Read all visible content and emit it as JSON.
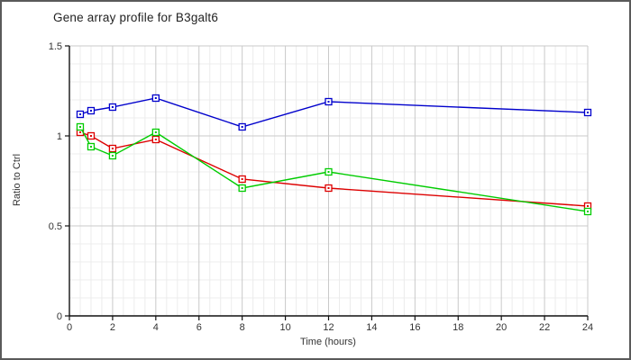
{
  "chart": {
    "title": "Gene array profile for B3galt6"
  },
  "chart_data": {
    "type": "line",
    "title": "Gene array profile for B3galt6",
    "xlabel": "Time (hours)",
    "ylabel": "Ratio to Ctrl",
    "x": [
      0.5,
      1,
      2,
      4,
      8,
      12,
      24
    ],
    "series": [
      {
        "name": "series-blue",
        "color": "#0000cc",
        "values": [
          1.12,
          1.14,
          1.16,
          1.21,
          1.05,
          1.19,
          1.13
        ]
      },
      {
        "name": "series-red",
        "color": "#dd0000",
        "values": [
          1.02,
          1.0,
          0.93,
          0.98,
          0.76,
          0.71,
          0.61
        ]
      },
      {
        "name": "series-green",
        "color": "#00cc00",
        "values": [
          1.05,
          0.94,
          0.89,
          1.02,
          0.71,
          0.8,
          0.58
        ]
      }
    ],
    "xlim": [
      0,
      24
    ],
    "ylim": [
      0,
      1.5
    ],
    "x_major_ticks": [
      0,
      2,
      4,
      6,
      8,
      10,
      12,
      14,
      16,
      18,
      20,
      22,
      24
    ],
    "x_minor_step": 0.5,
    "y_major_ticks": [
      0,
      0.5,
      1,
      1.5
    ],
    "y_minor_step": 0.1,
    "grid": true,
    "legend": "none",
    "marker": "open-square-with-dot",
    "colors": {
      "axis": "#111111",
      "major_grid": "#c9c9c9",
      "minor_grid": "#ececec",
      "tick_label": "#333333",
      "marker_fill": "#ffffff"
    }
  }
}
